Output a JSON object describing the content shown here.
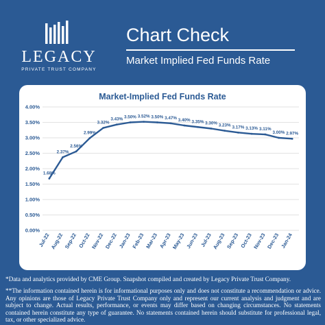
{
  "brand": {
    "name": "LEGACY",
    "tagline": "PRIVATE TRUST COMPANY"
  },
  "header": {
    "title": "Chart Check",
    "subtitle": "Market Implied Fed Funds Rate"
  },
  "colors": {
    "background": "#2b5a94",
    "line": "#2b5a94",
    "title": "#2b5a94",
    "grid": "#d9d9d9"
  },
  "chart_data": {
    "type": "line",
    "title": "Market-Implied Fed Funds Rate",
    "categories": [
      "Jul-22",
      "Aug-22",
      "Sep-22",
      "Oct-22",
      "Nov-22",
      "Dec-22",
      "Jan-23",
      "Feb-23",
      "Mar-23",
      "Apr-23",
      "May-23",
      "Jun-23",
      "Jul-23",
      "Aug-23",
      "Sep-23",
      "Oct-23",
      "Nov-23",
      "Dec-23",
      "Jan-24"
    ],
    "values": [
      1.68,
      2.37,
      2.56,
      2.99,
      3.32,
      3.43,
      3.5,
      3.52,
      3.5,
      3.47,
      3.4,
      3.35,
      3.3,
      3.23,
      3.17,
      3.13,
      3.11,
      3.0,
      2.97
    ],
    "value_labels": [
      "1.68%",
      "2.37%",
      "2.56%",
      "2.99%",
      "3.32%",
      "3.43%",
      "3.50%",
      "3.52%",
      "3.50%",
      "3.47%",
      "3.40%",
      "3.35%",
      "3.30%",
      "3.23%",
      "3.17%",
      "3.13%",
      "3.11%",
      "3.00%",
      "2.97%"
    ],
    "y_ticks": [
      "0.00%",
      "0.50%",
      "1.00%",
      "1.50%",
      "2.00%",
      "2.50%",
      "3.00%",
      "3.50%",
      "4.00%"
    ],
    "ylim": [
      0,
      4
    ],
    "grid": true,
    "legend": "none"
  },
  "footnotes": {
    "source": "*Data and analytics provided by CME Group. Snapshot compiled and created by Legacy Private Trust Company.",
    "disclaimer": "**The information contained herein is for informational purposes only and does not constitute a recommendation or advice. Any opinions are those of Legacy Private Trust Company only and represent our current analysis and judgment and are subject to change. Actual results, performance, or events may differ based on changing circumstances. No statements contained herein constitute any type of guarantee. No statements contained herein should substitute for professional legal, tax, or other specialized advice."
  }
}
